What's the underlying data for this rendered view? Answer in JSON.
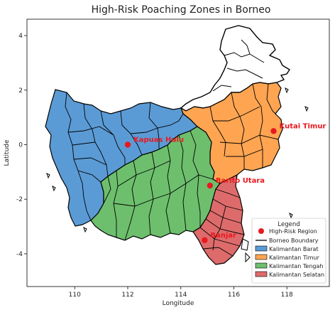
{
  "chart_data": {
    "type": "map",
    "title": "High-Risk Poaching Zones in Borneo",
    "xlabel": "Longitude",
    "ylabel": "Latitude",
    "xlim": [
      108.2,
      119.6
    ],
    "ylim": [
      -5.2,
      4.6
    ],
    "xticks": [
      110,
      112,
      114,
      116,
      118
    ],
    "yticks": [
      4,
      2,
      0,
      -2,
      -4
    ],
    "regions": [
      {
        "name": "Kalimantan Barat",
        "color": "#5b9bd5"
      },
      {
        "name": "Kalimantan Timur",
        "color": "#ffa552"
      },
      {
        "name": "Kalimantan Tengah",
        "color": "#6dbf6d"
      },
      {
        "name": "Kalimantan Selatan",
        "color": "#de6b6b"
      }
    ],
    "boundary_label": "Borneo Boundary",
    "points": [
      {
        "name": "Kapuas Hulu",
        "lon": 112.0,
        "lat": 0.0
      },
      {
        "name": "Kutai Timur",
        "lon": 117.5,
        "lat": 0.5
      },
      {
        "name": "Barito Utara",
        "lon": 115.1,
        "lat": -1.5
      },
      {
        "name": "Banjar",
        "lon": 114.9,
        "lat": -3.5
      }
    ],
    "legend": {
      "title": "Legend",
      "position": "lower right",
      "entries": [
        "High-Risk Region",
        "Borneo Boundary",
        "Kalimantan Barat",
        "Kalimantan Timur",
        "Kalimantan Tengah",
        "Kalimantan Selatan"
      ]
    },
    "point_color": "#e8191f"
  }
}
